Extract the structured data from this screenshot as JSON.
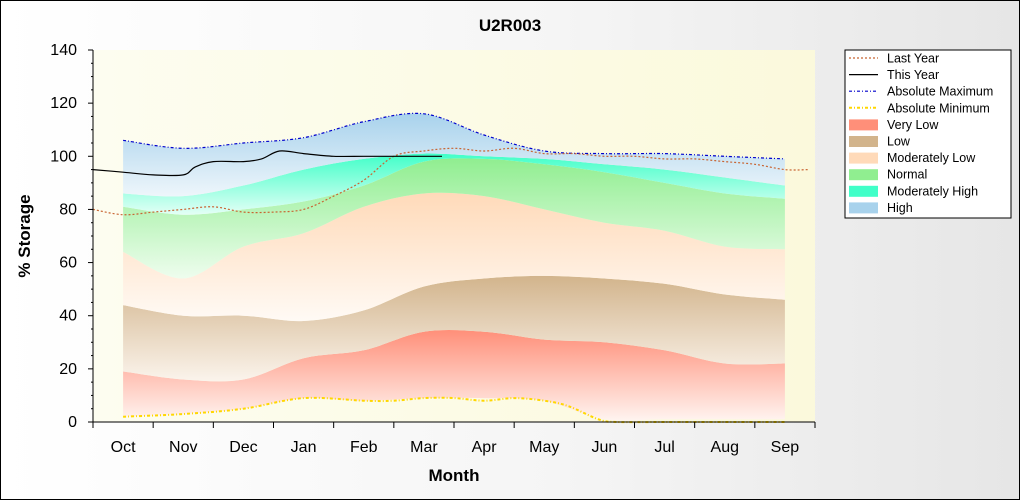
{
  "chart_data": {
    "type": "area",
    "title": "U2R003",
    "xlabel": "Month",
    "ylabel": "% Storage",
    "ylim": [
      0,
      140
    ],
    "yticks": [
      0,
      20,
      40,
      60,
      80,
      100,
      120,
      140
    ],
    "xlim": [
      -0.5,
      11.5
    ],
    "categories": [
      "Oct",
      "Nov",
      "Dec",
      "Jan",
      "Feb",
      "Mar",
      "Apr",
      "May",
      "Jun",
      "Jul",
      "Aug",
      "Sep"
    ],
    "grid": false,
    "legend_position": "right",
    "legend": [
      "Last Year",
      "This Year",
      "Absolute Maximum",
      "Absolute Minimum",
      "Very Low",
      "Low",
      "Moderately Low",
      "Normal",
      "Moderately High",
      "High"
    ],
    "band_x": [
      0,
      1,
      2,
      3,
      4,
      5,
      6,
      7,
      8,
      9,
      10,
      11
    ],
    "bands": [
      {
        "name": "Very Low",
        "color": "#ff8f79",
        "lower": [
          2,
          3,
          5,
          9,
          8,
          9,
          9,
          8,
          1,
          1,
          1,
          1
        ],
        "upper": [
          19,
          16,
          16,
          24,
          27,
          34,
          34,
          31,
          30,
          27,
          22,
          22
        ]
      },
      {
        "name": "Low",
        "color": "#d2b48c",
        "lower": [
          19,
          16,
          16,
          24,
          27,
          34,
          34,
          31,
          30,
          27,
          22,
          22
        ],
        "upper": [
          44,
          40,
          40,
          38,
          42,
          51,
          54,
          55,
          54,
          52,
          48,
          46
        ]
      },
      {
        "name": "Moderately Low",
        "color": "#ffdab9",
        "lower": [
          44,
          40,
          40,
          38,
          42,
          51,
          54,
          55,
          54,
          52,
          48,
          46
        ],
        "upper": [
          64,
          54,
          66,
          71,
          81,
          86,
          85,
          80,
          75,
          72,
          66,
          65
        ]
      },
      {
        "name": "Normal",
        "color": "#90ee90",
        "lower": [
          64,
          54,
          66,
          71,
          81,
          86,
          85,
          80,
          75,
          72,
          66,
          65
        ],
        "upper": [
          81,
          78,
          80,
          83,
          89,
          98,
          99,
          97,
          94,
          90,
          86,
          84
        ]
      },
      {
        "name": "Moderately High",
        "color": "#40ffc8",
        "lower": [
          81,
          78,
          80,
          83,
          89,
          98,
          99,
          97,
          94,
          90,
          86,
          84
        ],
        "upper": [
          86,
          85,
          89,
          95,
          99,
          101,
          100,
          99,
          97,
          95,
          92,
          89
        ]
      },
      {
        "name": "High",
        "color": "#a8d2ec",
        "lower": [
          86,
          85,
          89,
          95,
          99,
          101,
          100,
          99,
          97,
          95,
          92,
          89
        ],
        "upper": [
          106,
          103,
          105,
          107,
          113,
          116,
          108,
          102,
          101,
          101,
          100,
          99
        ]
      }
    ],
    "series": [
      {
        "name": "Absolute Maximum",
        "color": "#0000cc",
        "style": "dash-dot",
        "x": [
          0,
          1,
          2,
          3,
          4,
          5,
          6,
          7,
          8,
          9,
          10,
          11
        ],
        "y": [
          106,
          103,
          105,
          107,
          113,
          116,
          108,
          102,
          101,
          101,
          100,
          99
        ]
      },
      {
        "name": "Absolute Minimum",
        "color": "#ffd700",
        "style": "dash-dot",
        "x": [
          0,
          1,
          2,
          3,
          4,
          4.5,
          5,
          5.5,
          6,
          6.5,
          7,
          7.4,
          7.9,
          8.2,
          9,
          10,
          11
        ],
        "y": [
          2,
          3,
          5,
          9,
          8,
          8,
          9,
          9,
          8,
          9,
          8,
          6,
          1,
          0,
          0,
          0,
          0
        ]
      },
      {
        "name": "Last Year",
        "color": "#c86432",
        "style": "dotted",
        "x": [
          -0.5,
          0,
          0.5,
          1,
          1.5,
          2,
          2.5,
          3,
          3.5,
          4,
          4.5,
          5,
          5.5,
          6,
          6.5,
          7,
          7.5,
          8,
          8.5,
          9,
          9.5,
          10,
          10.5,
          11,
          11.4
        ],
        "y": [
          80,
          78,
          79,
          80,
          81,
          79,
          79,
          80,
          85,
          91,
          100,
          102,
          103,
          102,
          103,
          101,
          101,
          100,
          100,
          99,
          99,
          98,
          97,
          95,
          95
        ]
      },
      {
        "name": "This Year",
        "color": "#000000",
        "style": "solid",
        "x": [
          -0.5,
          0,
          0.5,
          1,
          1.2,
          1.5,
          2,
          2.3,
          2.6,
          3,
          3.5,
          4,
          4.5,
          5,
          5.3
        ],
        "y": [
          95,
          94,
          93,
          93,
          96,
          98,
          98,
          99,
          102,
          101,
          100,
          100,
          100,
          100,
          100
        ]
      }
    ]
  }
}
